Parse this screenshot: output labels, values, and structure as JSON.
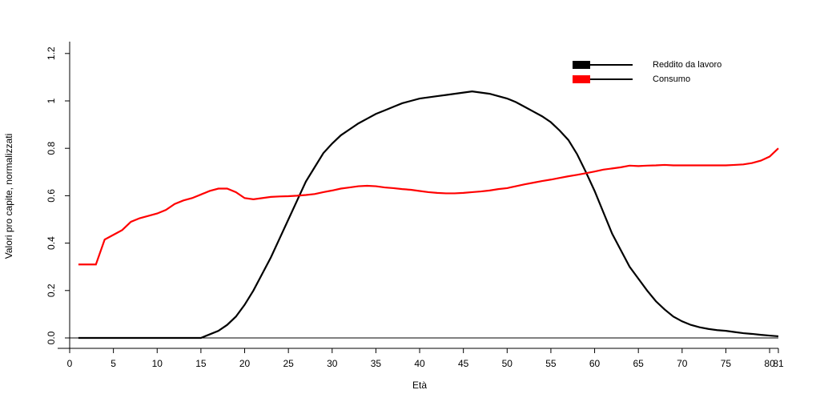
{
  "chart_data": {
    "type": "line",
    "x_label": "Età",
    "y_label": "Valori pro capite, normalizzati",
    "x": [
      1,
      2,
      3,
      4,
      5,
      6,
      7,
      8,
      9,
      10,
      11,
      12,
      13,
      14,
      15,
      16,
      17,
      18,
      19,
      20,
      21,
      22,
      23,
      24,
      25,
      26,
      27,
      28,
      29,
      30,
      31,
      32,
      33,
      34,
      35,
      36,
      37,
      38,
      39,
      40,
      41,
      42,
      43,
      44,
      45,
      46,
      47,
      48,
      49,
      50,
      51,
      52,
      53,
      54,
      55,
      56,
      57,
      58,
      59,
      60,
      61,
      62,
      63,
      64,
      65,
      66,
      67,
      68,
      69,
      70,
      71,
      72,
      73,
      74,
      75,
      76,
      77,
      78,
      79,
      80,
      81
    ],
    "series": [
      {
        "name": "Reddito da lavoro",
        "color": "#000000",
        "values": [
          0,
          0,
          0,
          0,
          0,
          0,
          0,
          0,
          0,
          0,
          0,
          0,
          0,
          0,
          0,
          0.015,
          0.03,
          0.055,
          0.09,
          0.14,
          0.2,
          0.27,
          0.34,
          0.42,
          0.5,
          0.58,
          0.66,
          0.72,
          0.78,
          0.82,
          0.855,
          0.88,
          0.905,
          0.925,
          0.945,
          0.96,
          0.975,
          0.99,
          1.0,
          1.01,
          1.015,
          1.02,
          1.025,
          1.03,
          1.035,
          1.04,
          1.035,
          1.03,
          1.02,
          1.01,
          0.995,
          0.975,
          0.955,
          0.935,
          0.91,
          0.875,
          0.835,
          0.775,
          0.7,
          0.62,
          0.53,
          0.44,
          0.37,
          0.3,
          0.25,
          0.2,
          0.155,
          0.12,
          0.09,
          0.07,
          0.055,
          0.045,
          0.038,
          0.033,
          0.03,
          0.025,
          0.02,
          0.017,
          0.013,
          0.01,
          0.007
        ]
      },
      {
        "name": "Consumo",
        "color": "#ff0000",
        "values": [
          0.31,
          0.31,
          0.31,
          0.415,
          0.435,
          0.455,
          0.49,
          0.505,
          0.515,
          0.525,
          0.54,
          0.565,
          0.58,
          0.59,
          0.605,
          0.62,
          0.63,
          0.63,
          0.615,
          0.59,
          0.585,
          0.59,
          0.595,
          0.597,
          0.598,
          0.6,
          0.603,
          0.607,
          0.615,
          0.622,
          0.63,
          0.635,
          0.64,
          0.642,
          0.64,
          0.635,
          0.632,
          0.628,
          0.625,
          0.62,
          0.615,
          0.612,
          0.61,
          0.61,
          0.612,
          0.615,
          0.618,
          0.622,
          0.628,
          0.632,
          0.64,
          0.648,
          0.655,
          0.662,
          0.668,
          0.675,
          0.682,
          0.688,
          0.695,
          0.702,
          0.71,
          0.715,
          0.72,
          0.727,
          0.725,
          0.727,
          0.728,
          0.73,
          0.728,
          0.728,
          0.728,
          0.728,
          0.728,
          0.728,
          0.728,
          0.73,
          0.732,
          0.738,
          0.748,
          0.765,
          0.8
        ]
      }
    ],
    "xlim": [
      0,
      81
    ],
    "ylim": [
      0,
      1.25
    ],
    "xticks": [
      0,
      5,
      10,
      15,
      20,
      25,
      30,
      35,
      40,
      45,
      50,
      55,
      60,
      65,
      70,
      75,
      80,
      81
    ],
    "yticks": [
      {
        "value": 0,
        "label": "0.0"
      },
      0.2,
      0.4,
      0.6,
      0.8,
      1,
      1.2
    ],
    "legend": "top-right"
  }
}
